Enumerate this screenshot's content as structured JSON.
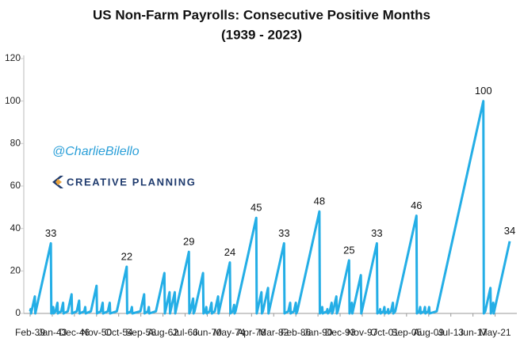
{
  "chart_data": {
    "type": "line",
    "title": "US Non-Farm Payrolls: Consecutive Positive Months",
    "subtitle": "(1939 - 2023)",
    "watermark": "@CharlieBilello",
    "logo_text": "CREATIVE PLANNING",
    "color": "#24aee6",
    "grid": false,
    "ylim": [
      0,
      120
    ],
    "yticks": [
      0,
      20,
      40,
      60,
      80,
      100,
      120
    ],
    "xlim": [
      "Feb-39",
      "Dec-23"
    ],
    "xticks": [
      "Feb-39",
      "Jan-43",
      "Dec-46",
      "Nov-50",
      "Oct-54",
      "Sep-58",
      "Aug-62",
      "Jul-66",
      "Jun-70",
      "May-74",
      "Apr-78",
      "Mar-82",
      "Feb-86",
      "Jan-90",
      "Dec-93",
      "Nov-97",
      "Oct-01",
      "Sep-05",
      "Aug-09",
      "Jul-13",
      "Jun-17",
      "May-21"
    ],
    "x": [
      "Feb-39",
      "Mar-39",
      "Apr-39",
      "May-39",
      "Dec-39",
      "Jan-40",
      "Feb-40",
      "Oct-42",
      "Nov-42",
      "Jan-43",
      "Mar-43",
      "Apr-43",
      "Aug-43",
      "Dec-43",
      "Jan-44",
      "Aug-44",
      "Dec-44",
      "Jan-45",
      "Oct-45",
      "Jun-46",
      "Jul-46",
      "May-47",
      "Oct-47",
      "Nov-47",
      "Sep-48",
      "Nov-48",
      "Dec-48",
      "Nov-49",
      "Nov-50",
      "Dec-50",
      "Aug-51",
      "Dec-51",
      "Jan-52",
      "Nov-52",
      "Mar-53",
      "Apr-53",
      "Jun-54",
      "Mar-56",
      "Apr-56",
      "Dec-56",
      "Feb-57",
      "Mar-57",
      "Aug-58",
      "Apr-59",
      "May-59",
      "Dec-59",
      "Feb-60",
      "Mar-60",
      "May-61",
      "Nov-62",
      "Dec-62",
      "Jan-63",
      "Oct-63",
      "Nov-63",
      "Dec-63",
      "Sep-64",
      "Oct-64",
      "Nov-64",
      "Mar-67",
      "Apr-67",
      "Jun-67",
      "Dec-67",
      "Jan-68",
      "Mar-68",
      "Sep-69",
      "Oct-69",
      "Feb-70",
      "Apr-70",
      "May-70",
      "Nov-70",
      "Mar-71",
      "Apr-71",
      "Oct-71",
      "May-72",
      "Jun-72",
      "Jul-72",
      "Jun-74",
      "Jul-74",
      "Dec-74",
      "Mar-75",
      "Apr-75",
      "Jun-75",
      "Feb-79",
      "Mar-79",
      "Apr-79",
      "Jan-80",
      "Feb-80",
      "Apr-80",
      "Mar-81",
      "Apr-81",
      "May-81",
      "Jan-84",
      "Feb-84",
      "Oct-84",
      "Feb-85",
      "Mar-85",
      "Oct-85",
      "Feb-86",
      "Mar-86",
      "May-86",
      "Apr-90",
      "May-90",
      "Aug-90",
      "Oct-90",
      "Nov-90",
      "Aug-91",
      "Sep-91",
      "Oct-91",
      "Feb-92",
      "Jun-92",
      "Jul-92",
      "Sep-92",
      "Apr-93",
      "May-93",
      "Jul-93",
      "Jul-95",
      "Aug-95",
      "Sep-95",
      "Jan-96",
      "Feb-96",
      "Mar-96",
      "Aug-97",
      "Sep-97",
      "Oct-97",
      "Jun-00",
      "Jul-00",
      "Dec-00",
      "Jan-01",
      "Feb-01",
      "Aug-01",
      "Oct-01",
      "Nov-01",
      "May-02",
      "Jun-02",
      "Jul-02",
      "Dec-02",
      "Apr-03",
      "May-03",
      "Sep-03",
      "Jun-07",
      "Jul-07",
      "Dec-07",
      "Feb-08",
      "Mar-08",
      "Oct-08",
      "Dec-08",
      "Jan-09",
      "Jul-09",
      "Sep-09",
      "Oct-09",
      "Jan-11",
      "Apr-19",
      "May-19",
      "Aug-19",
      "Jul-20",
      "Aug-20",
      "Sep-20",
      "Jan-21",
      "Feb-21",
      "Mar-21",
      "Dec-23"
    ],
    "values": [
      1,
      2,
      0,
      1,
      8,
      0,
      1,
      33,
      0,
      1,
      3,
      0,
      1,
      5,
      0,
      1,
      5,
      0,
      1,
      9,
      0,
      1,
      6,
      0,
      1,
      3,
      0,
      1,
      13,
      0,
      1,
      5,
      0,
      1,
      5,
      0,
      1,
      22,
      0,
      1,
      3,
      0,
      1,
      9,
      0,
      1,
      3,
      0,
      1,
      19,
      0,
      1,
      10,
      0,
      1,
      10,
      0,
      1,
      29,
      0,
      1,
      7,
      0,
      1,
      19,
      0,
      1,
      3,
      0,
      1,
      5,
      0,
      1,
      8,
      0,
      1,
      24,
      0,
      1,
      4,
      0,
      1,
      45,
      0,
      1,
      10,
      0,
      1,
      12,
      0,
      1,
      33,
      0,
      1,
      5,
      0,
      1,
      5,
      0,
      1,
      48,
      0,
      1,
      3,
      0,
      1,
      2,
      0,
      1,
      5,
      0,
      1,
      8,
      0,
      1,
      25,
      0,
      1,
      5,
      0,
      1,
      18,
      0,
      1,
      33,
      0,
      1,
      2,
      0,
      1,
      3,
      0,
      1,
      2,
      0,
      1,
      5,
      0,
      1,
      46,
      0,
      1,
      3,
      0,
      1,
      3,
      0,
      1,
      3,
      0,
      1,
      100,
      0,
      1,
      12,
      0,
      1,
      5,
      0,
      1,
      34
    ]
  }
}
